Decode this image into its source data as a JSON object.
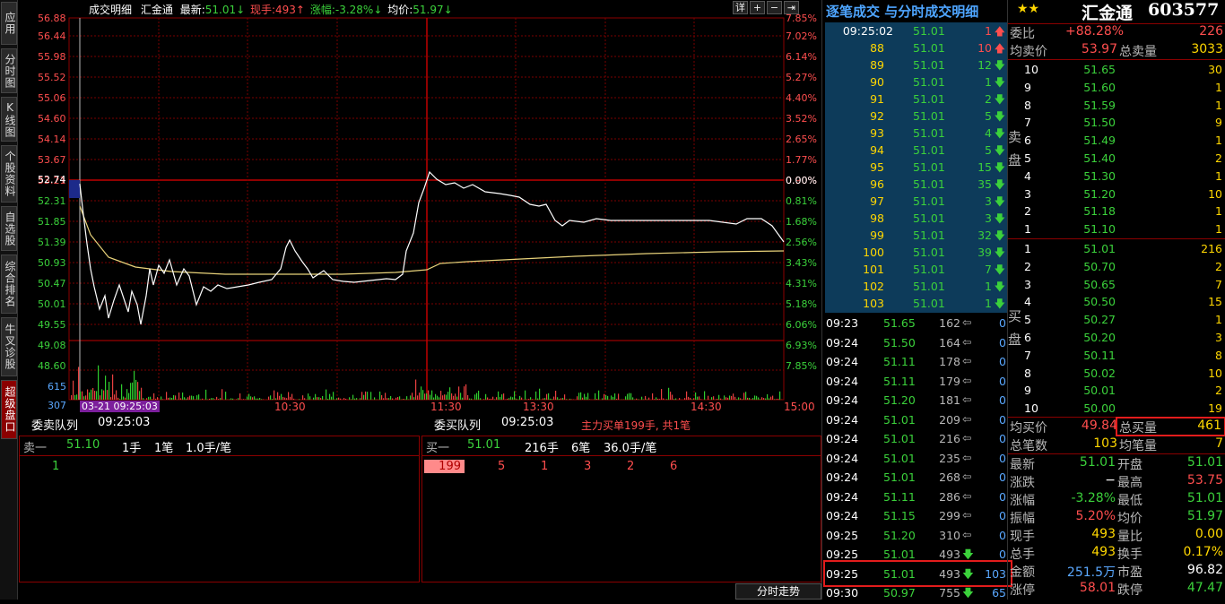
{
  "sidebar": {
    "tabs": [
      {
        "label": "应用",
        "active": false
      },
      {
        "label": "分时图",
        "active": false
      },
      {
        "label": "K线图",
        "active": false
      },
      {
        "label": "个股资料",
        "active": false
      },
      {
        "label": "自选股",
        "active": false
      },
      {
        "label": "综合排名",
        "active": false
      },
      {
        "label": "牛叉诊股",
        "active": false
      },
      {
        "label": "超级盘口",
        "active": true
      }
    ]
  },
  "header": {
    "tab": "成交明细",
    "name": "汇金通",
    "latest_label": "最新:",
    "latest": "51.01↓",
    "vol_label": "现手:",
    "vol": "493↑",
    "chg_label": "涨幅:",
    "chg": "-3.28%↓",
    "avg_label": "均价:",
    "avg": "51.97↓"
  },
  "tools": [
    "详",
    "+",
    "−",
    "⇥"
  ],
  "left_axis": [
    "56.88",
    "56.44",
    "55.98",
    "55.52",
    "55.06",
    "54.60",
    "54.14",
    "53.67",
    "53.21",
    "52.74",
    "52.31",
    "51.85",
    "51.39",
    "50.93",
    "50.47",
    "50.01",
    "49.55",
    "49.08",
    "48.60",
    "615",
    "307"
  ],
  "right_axis": [
    "7.85%",
    "7.02%",
    "6.14%",
    "5.27%",
    "4.40%",
    "3.52%",
    "2.65%",
    "1.77%",
    "0.90%",
    "0.00%",
    "0.81%",
    "1.68%",
    "2.56%",
    "3.43%",
    "4.31%",
    "5.18%",
    "6.06%",
    "6.93%",
    "7.85%"
  ],
  "time_axis": {
    "cursor": "03-21 09:25:03",
    "t1": "10:30",
    "t2": "11:30",
    "t3": "13:30",
    "t4": "14:30",
    "t5": "15:00"
  },
  "queue": {
    "sell_title": "委卖队列",
    "sell_time": "09:25:03",
    "buy_title": "委买队列",
    "buy_time": "09:25:03",
    "note": "主力买单199手, 共1笔",
    "sell": {
      "label": "卖一",
      "price": "51.10",
      "hands": "1手",
      "count": "1笔",
      "per": "1.0手/笔",
      "items": [
        "1"
      ]
    },
    "buy": {
      "label": "买一",
      "price": "51.01",
      "hands": "216手",
      "count": "6笔",
      "per": "36.0手/笔",
      "items": [
        "199",
        "5",
        "1",
        "3",
        "2",
        "6"
      ]
    }
  },
  "tick_panel": {
    "title": "逐笔成交 与分时成交明细",
    "top_rows": [
      [
        "09:25:02",
        "51.01",
        "1",
        "up"
      ],
      [
        "88",
        "51.01",
        "10",
        "up"
      ],
      [
        "89",
        "51.01",
        "12",
        "dn"
      ],
      [
        "90",
        "51.01",
        "1",
        "dn"
      ],
      [
        "91",
        "51.01",
        "2",
        "dn"
      ],
      [
        "92",
        "51.01",
        "5",
        "dn"
      ],
      [
        "93",
        "51.01",
        "4",
        "dn"
      ],
      [
        "94",
        "51.01",
        "5",
        "dn"
      ],
      [
        "95",
        "51.01",
        "15",
        "dn"
      ],
      [
        "96",
        "51.01",
        "35",
        "dn"
      ],
      [
        "97",
        "51.01",
        "3",
        "dn"
      ],
      [
        "98",
        "51.01",
        "3",
        "dn"
      ],
      [
        "99",
        "51.01",
        "32",
        "dn"
      ],
      [
        "100",
        "51.01",
        "39",
        "dn"
      ],
      [
        "101",
        "51.01",
        "7",
        "dn"
      ],
      [
        "102",
        "51.01",
        "1",
        "dn"
      ],
      [
        "103",
        "51.01",
        "1",
        "dn"
      ]
    ],
    "min_rows": [
      [
        "09:23",
        "51.65",
        "162",
        "0"
      ],
      [
        "09:24",
        "51.50",
        "164",
        "0"
      ],
      [
        "09:24",
        "51.11",
        "178",
        "0"
      ],
      [
        "09:24",
        "51.11",
        "179",
        "0"
      ],
      [
        "09:24",
        "51.20",
        "181",
        "0"
      ],
      [
        "09:24",
        "51.01",
        "209",
        "0"
      ],
      [
        "09:24",
        "51.01",
        "216",
        "0"
      ],
      [
        "09:24",
        "51.01",
        "235",
        "0"
      ],
      [
        "09:24",
        "51.01",
        "268",
        "0"
      ],
      [
        "09:24",
        "51.11",
        "286",
        "0"
      ],
      [
        "09:24",
        "51.15",
        "299",
        "0"
      ],
      [
        "09:25",
        "51.20",
        "310",
        "0"
      ],
      [
        "09:25",
        "51.01",
        "493",
        "0"
      ],
      [
        "09:25",
        "51.01",
        "493",
        "103"
      ],
      [
        "09:30",
        "50.97",
        "755",
        "65"
      ]
    ],
    "footer_tab": "分时走势"
  },
  "quote": {
    "stars": "★★",
    "name": "汇金通",
    "code": "603577",
    "weibi_label": "委比",
    "weibi": "+88.28%",
    "weibi_diff": "226",
    "avg_sell_label": "均卖价",
    "avg_sell": "53.97",
    "total_sell_label": "总卖量",
    "total_sell": "3033",
    "sell_side": "卖盘",
    "buy_side": "买盘",
    "asks": [
      [
        "10",
        "51.65",
        "30"
      ],
      [
        "9",
        "51.60",
        "1"
      ],
      [
        "8",
        "51.59",
        "1"
      ],
      [
        "7",
        "51.50",
        "9"
      ],
      [
        "6",
        "51.49",
        "1"
      ],
      [
        "5",
        "51.40",
        "2"
      ],
      [
        "4",
        "51.30",
        "1"
      ],
      [
        "3",
        "51.20",
        "10"
      ],
      [
        "2",
        "51.18",
        "1"
      ],
      [
        "1",
        "51.10",
        "1"
      ]
    ],
    "bids": [
      [
        "1",
        "51.01",
        "216"
      ],
      [
        "2",
        "50.70",
        "2"
      ],
      [
        "3",
        "50.65",
        "7"
      ],
      [
        "4",
        "50.50",
        "15"
      ],
      [
        "5",
        "50.27",
        "1"
      ],
      [
        "6",
        "50.20",
        "3"
      ],
      [
        "7",
        "50.11",
        "8"
      ],
      [
        "8",
        "50.02",
        "10"
      ],
      [
        "9",
        "50.01",
        "2"
      ],
      [
        "10",
        "50.00",
        "19"
      ]
    ],
    "avg_buy_label": "均买价",
    "avg_buy": "49.84",
    "total_buy_label": "总买量",
    "total_buy": "461",
    "total_cnt_label": "总笔数",
    "total_cnt": "103",
    "per_cnt_label": "均笔量",
    "per_cnt": "7",
    "stats": [
      [
        "最新",
        "51.01",
        "开盘",
        "51.01"
      ],
      [
        "涨跌",
        "−",
        "最高",
        "53.75"
      ],
      [
        "涨幅",
        "-3.28%",
        "最低",
        "51.01"
      ],
      [
        "振幅",
        "5.20%",
        "均价",
        "51.97"
      ],
      [
        "现手",
        "493",
        "量比",
        "0.00"
      ],
      [
        "总手",
        "493",
        "换手",
        "0.17%"
      ],
      [
        "金额",
        "251.5万",
        "市盈",
        "96.82"
      ],
      [
        "涨停",
        "58.01",
        "跌停",
        "47.47"
      ]
    ]
  }
}
